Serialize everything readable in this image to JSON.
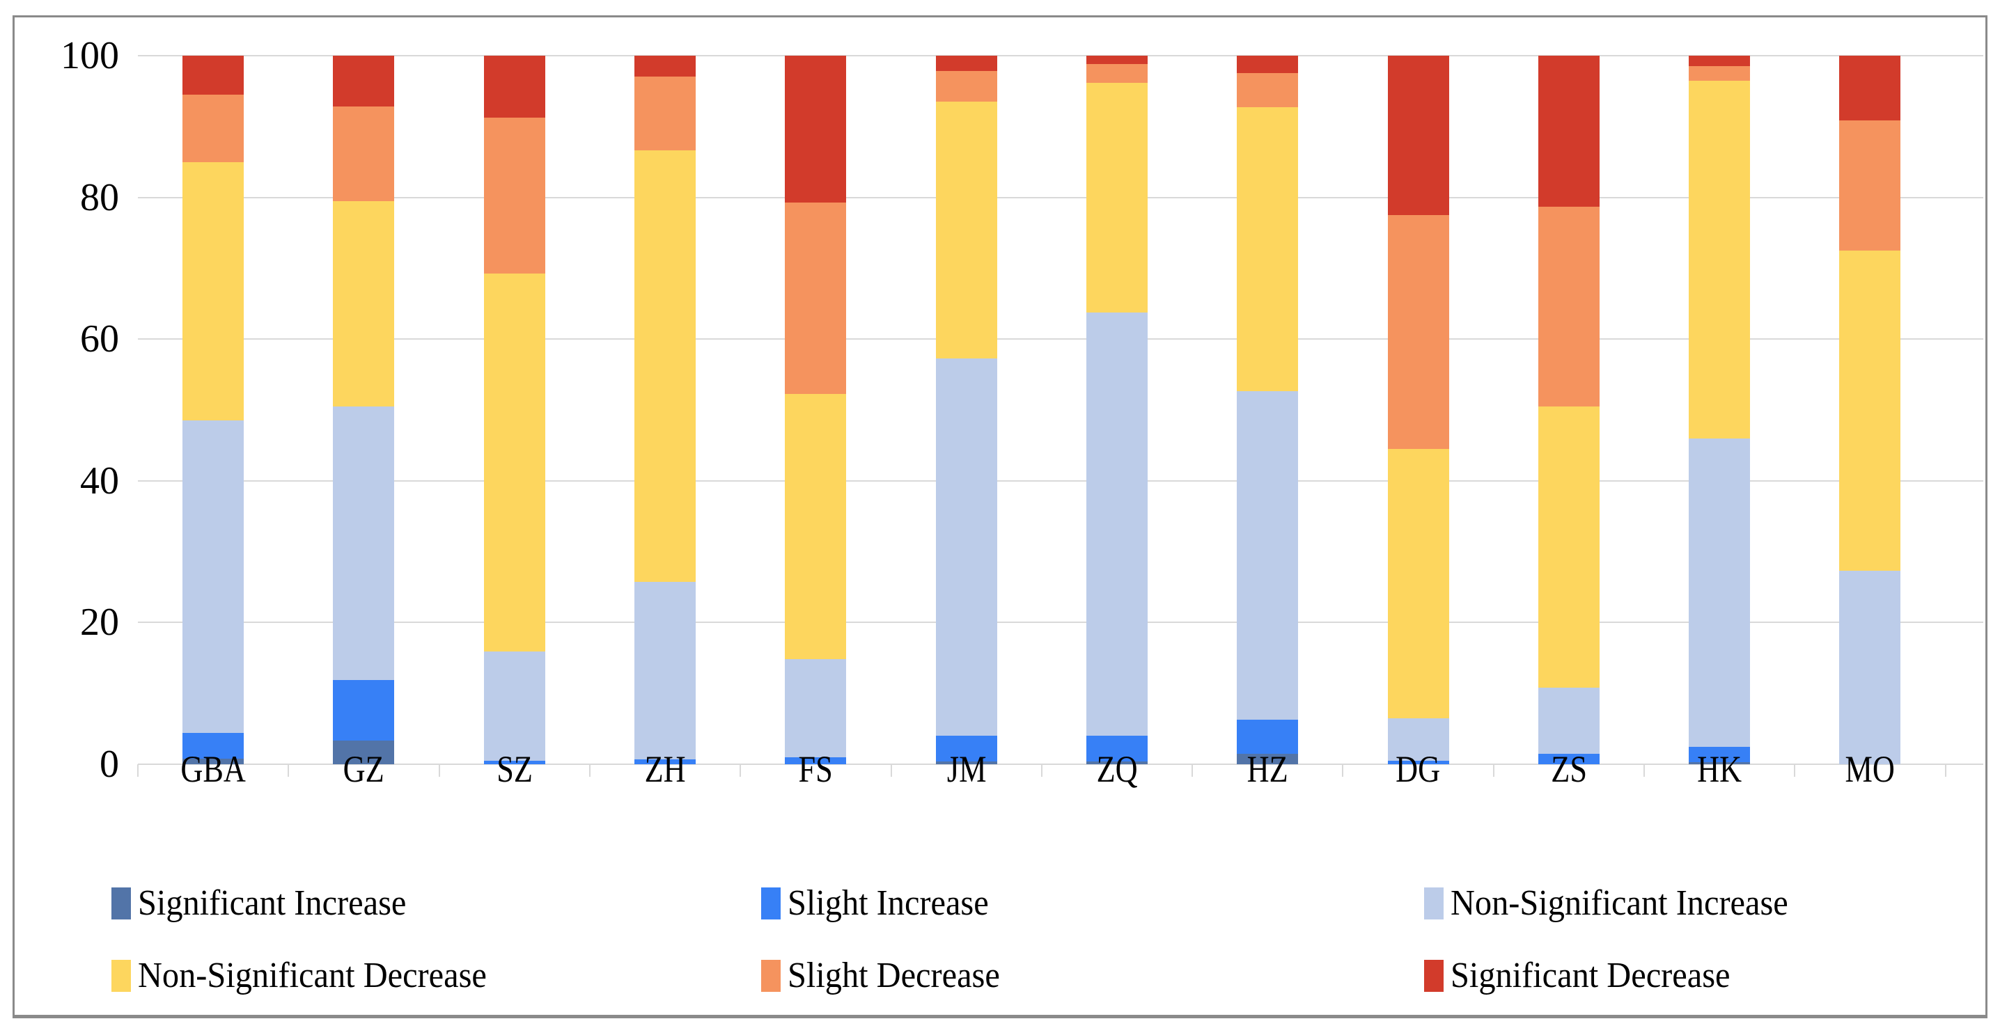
{
  "chart_data": {
    "type": "bar",
    "stacked": true,
    "title": "",
    "xlabel": "",
    "ylabel": "",
    "ylim": [
      0,
      100
    ],
    "yticks": [
      0,
      20,
      40,
      60,
      80,
      100
    ],
    "grid": true,
    "legend_position": "bottom",
    "categories": [
      "GBA",
      "GZ",
      "SZ",
      "ZH",
      "FS",
      "JM",
      "ZQ",
      "HZ",
      "DG",
      "ZS",
      "HK",
      "MO"
    ],
    "series": [
      {
        "name": "Significant Increase",
        "color": "#5274a8",
        "values": [
          0.8,
          3.3,
          0,
          0,
          0,
          0.4,
          0.4,
          1.5,
          0,
          0,
          0.3,
          0
        ]
      },
      {
        "name": "Slight Increase",
        "color": "#3780f6",
        "values": [
          3.6,
          8.6,
          0.5,
          0.7,
          1.0,
          3.6,
          3.6,
          4.8,
          0.5,
          1.5,
          2.2,
          0
        ]
      },
      {
        "name": "Non-Significant Increase",
        "color": "#bccce9",
        "values": [
          44.1,
          38.6,
          15.4,
          25.0,
          13.8,
          53.3,
          59.8,
          46.4,
          6.0,
          9.3,
          43.5,
          27.3
        ]
      },
      {
        "name": "Non-Significant Decrease",
        "color": "#fdd65e",
        "values": [
          36.5,
          29.0,
          53.4,
          60.9,
          37.5,
          36.2,
          32.4,
          40.0,
          38.0,
          39.7,
          50.5,
          45.2
        ]
      },
      {
        "name": "Slight Decrease",
        "color": "#f5935e",
        "values": [
          9.5,
          13.3,
          22.0,
          10.5,
          27.0,
          4.3,
          2.6,
          4.8,
          33.0,
          28.2,
          2.0,
          18.4
        ]
      },
      {
        "name": "Significant Decrease",
        "color": "#d23b2b",
        "values": [
          5.5,
          7.2,
          8.7,
          2.9,
          20.7,
          2.2,
          1.2,
          2.5,
          22.5,
          21.3,
          1.5,
          9.1
        ]
      }
    ],
    "legend_rows": [
      [
        0,
        1,
        2
      ],
      [
        3,
        4,
        5
      ]
    ],
    "axis_tick_color": "#d9d9d9",
    "frame_border_color": "#8a8a8a"
  }
}
